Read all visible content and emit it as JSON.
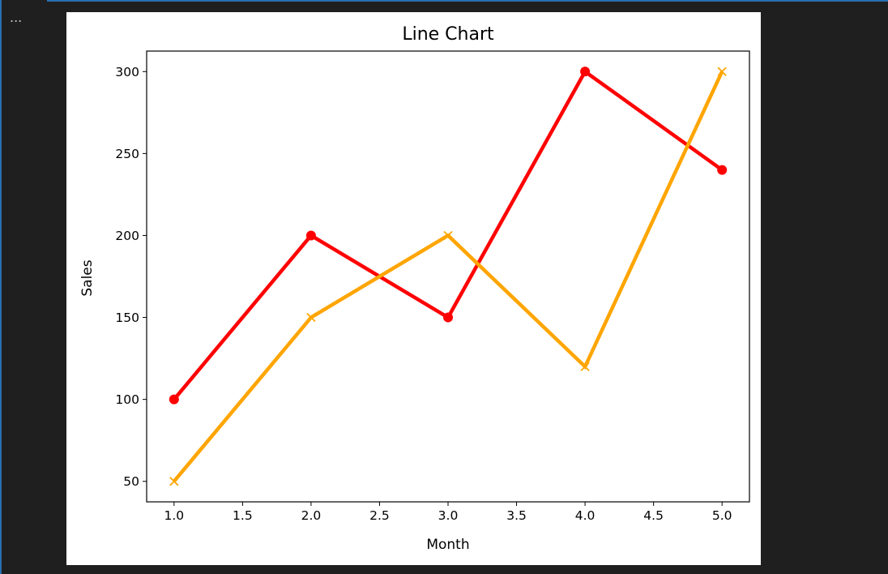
{
  "toolbar": {
    "more_label": "..."
  },
  "chart_data": {
    "type": "line",
    "title": "Line Chart",
    "xlabel": "Month",
    "ylabel": "Sales",
    "xlim": [
      0.8,
      5.2
    ],
    "ylim": [
      37.5,
      312.5
    ],
    "xticks": [
      1.0,
      1.5,
      2.0,
      2.5,
      3.0,
      3.5,
      4.0,
      4.5,
      5.0
    ],
    "xtick_labels": [
      "1.0",
      "1.5",
      "2.0",
      "2.5",
      "3.0",
      "3.5",
      "4.0",
      "4.5",
      "5.0"
    ],
    "yticks": [
      50,
      100,
      150,
      200,
      250,
      300
    ],
    "ytick_labels": [
      "50",
      "100",
      "150",
      "200",
      "250",
      "300"
    ],
    "grid": false,
    "series": [
      {
        "x": [
          1,
          2,
          3,
          4,
          5
        ],
        "y": [
          100,
          200,
          150,
          300,
          240
        ],
        "color": "#ff0000",
        "marker": "circle"
      },
      {
        "x": [
          1,
          2,
          3,
          4,
          5
        ],
        "y": [
          50,
          150,
          200,
          120,
          300
        ],
        "color": "#ffa500",
        "marker": "x"
      }
    ]
  }
}
